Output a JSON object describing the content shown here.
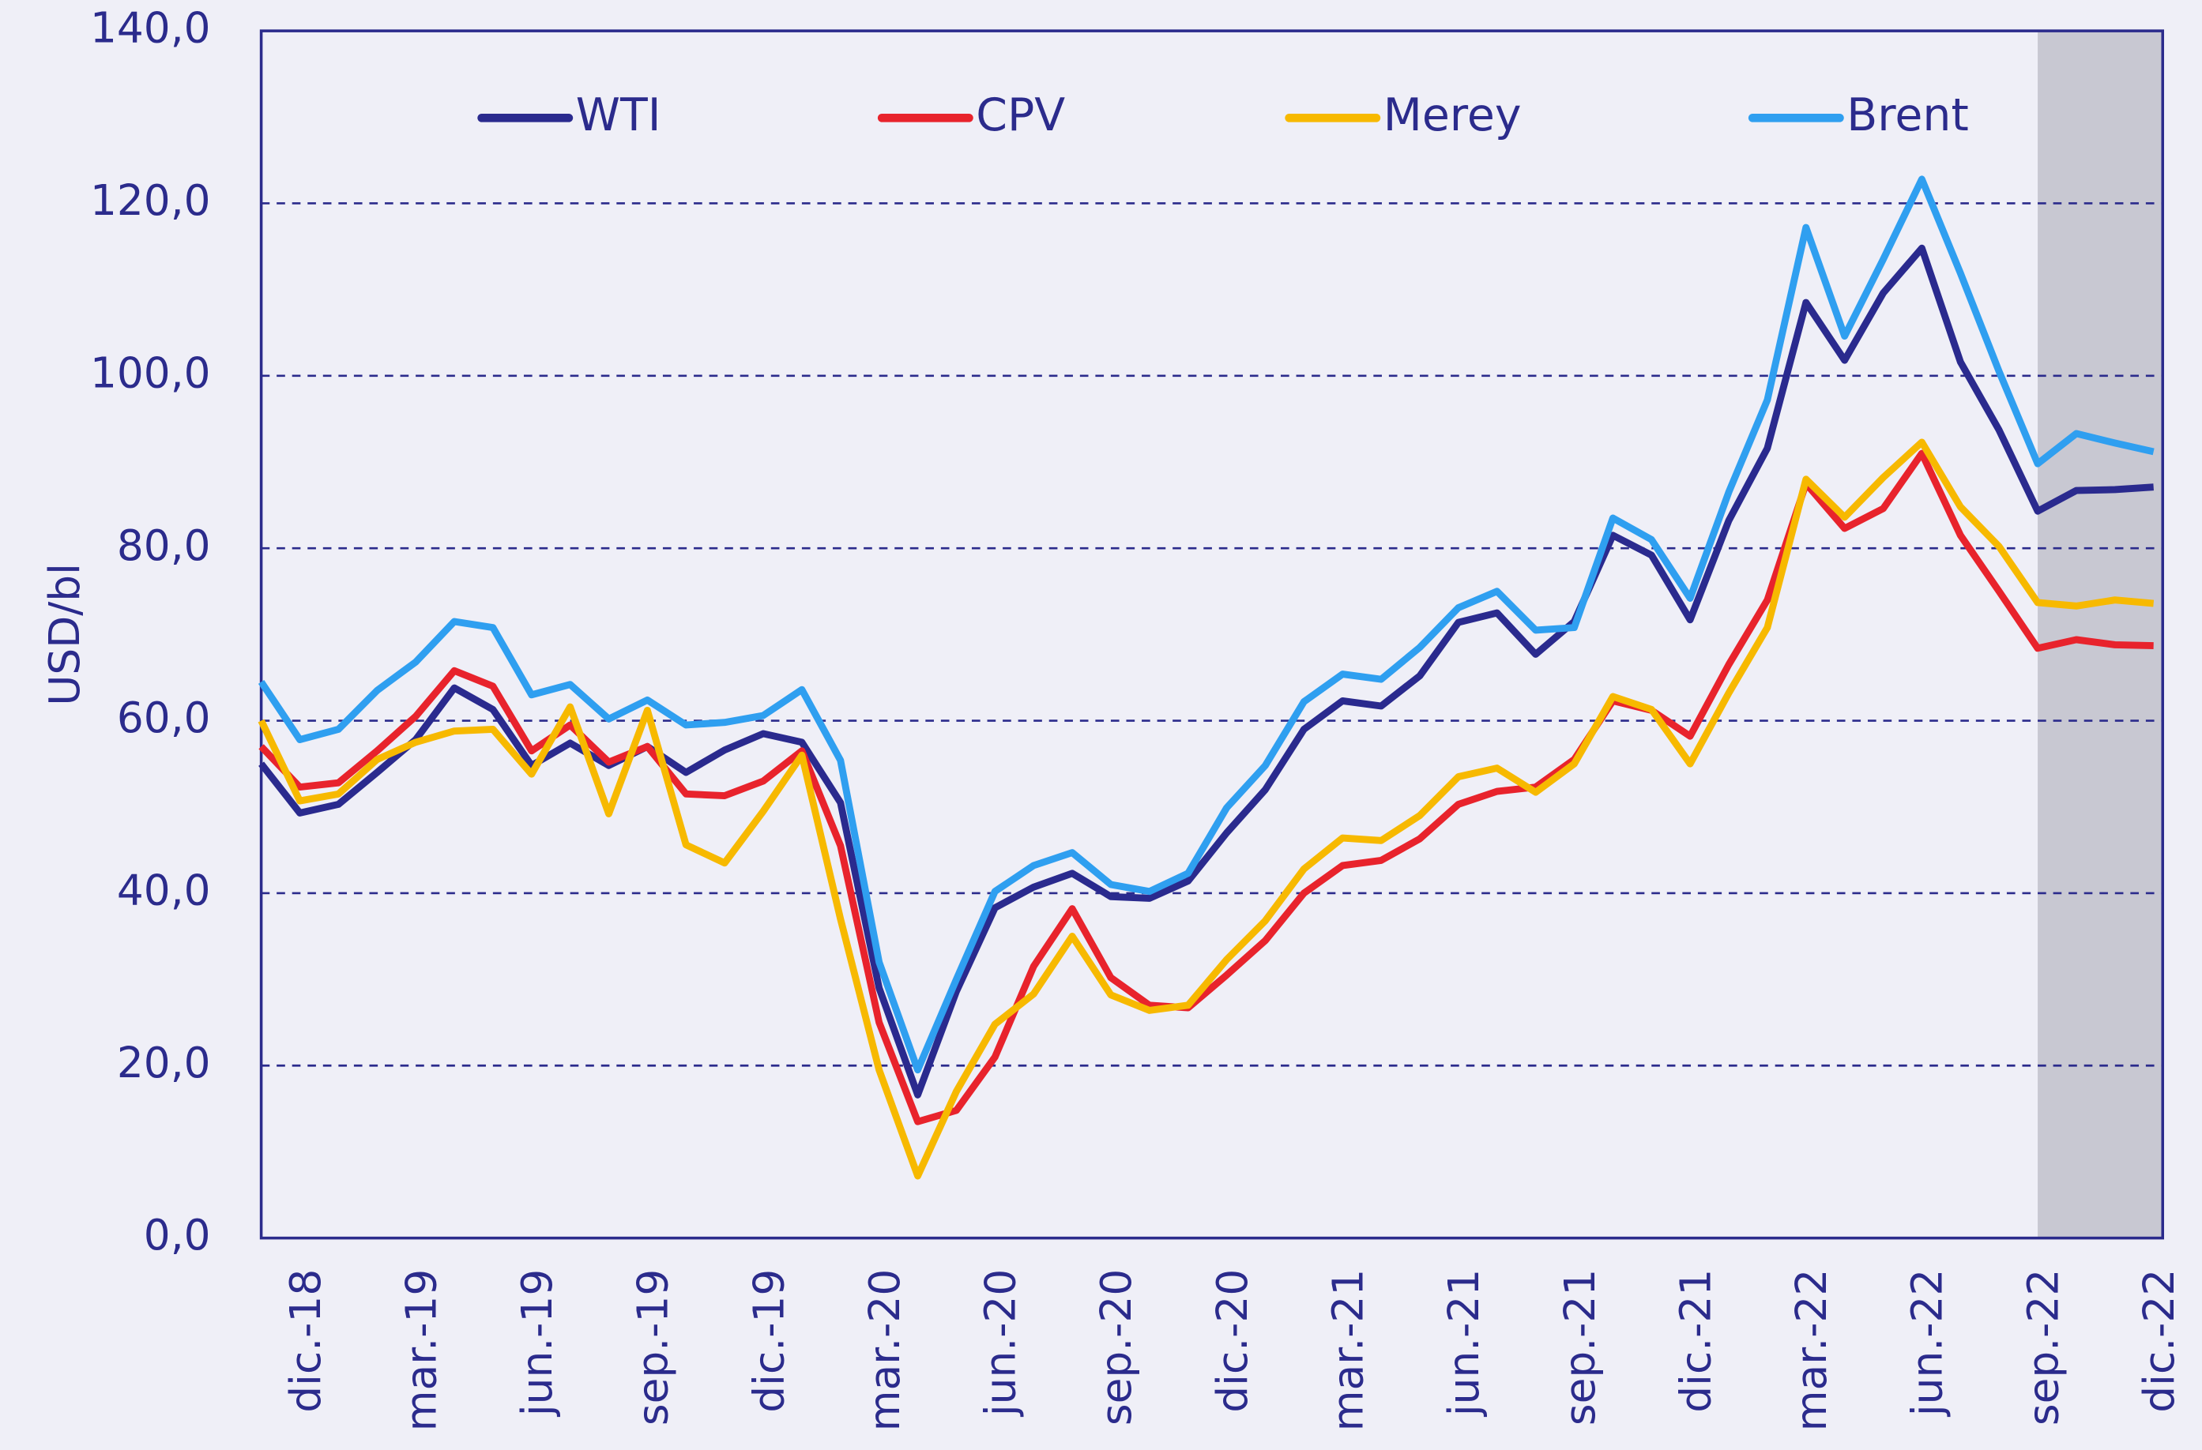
{
  "chart_data": {
    "type": "line",
    "y_label": "USD/bl",
    "categories": [
      null,
      "dic.-18",
      null,
      null,
      "mar.-19",
      null,
      null,
      "jun.-19",
      null,
      null,
      "sep.-19",
      null,
      null,
      "dic.-19",
      null,
      null,
      "mar.-20",
      null,
      null,
      "jun.-20",
      null,
      null,
      "sep.-20",
      null,
      null,
      "dic.-20",
      null,
      null,
      "mar.-21",
      null,
      null,
      "jun.-21",
      null,
      null,
      "sep.-21",
      null,
      null,
      "dic.-21",
      null,
      null,
      "mar.-22",
      null,
      null,
      "jun.-22",
      null,
      null,
      "sep.-22",
      null,
      null,
      "dic.-22"
    ],
    "series": [
      {
        "name": "WTI",
        "color": "#2a2a8e",
        "values": [
          55,
          49.3,
          50.3,
          54,
          57.8,
          63.8,
          61.3,
          54.8,
          57.4,
          54.8,
          57,
          54,
          56.6,
          58.5,
          57.5,
          50.5,
          29,
          16.6,
          28.6,
          38.3,
          40.7,
          42.3,
          39.6,
          39.4,
          41.4,
          47,
          52,
          59,
          62.3,
          61.7,
          65.2,
          71.4,
          72.5,
          67.7,
          71.5,
          81.5,
          79.2,
          71.7,
          83.2,
          91.6,
          108.5,
          101.8,
          109.6,
          114.8,
          101.6,
          93.7,
          84.3,
          86.7,
          86.8,
          87.1
        ]
      },
      {
        "name": "CPV",
        "color": "#e8232c",
        "values": [
          57,
          52.3,
          52.8,
          56.5,
          60.5,
          65.8,
          64,
          56.5,
          59.5,
          55.2,
          57,
          51.5,
          51.3,
          53,
          56.5,
          45.5,
          25,
          13.5,
          14.8,
          21,
          31.5,
          38.2,
          30.2,
          27,
          26.7,
          30.5,
          34.5,
          40,
          43.2,
          43.8,
          46.3,
          50.3,
          51.8,
          52.3,
          55.5,
          62.3,
          61.2,
          58.2,
          66.5,
          74,
          87.5,
          82.3,
          84.6,
          91,
          81.5,
          75,
          68.4,
          69.4,
          68.8,
          68.7
        ]
      },
      {
        "name": "Merey",
        "color": "#f7b900",
        "values": [
          60,
          50.7,
          51.5,
          55.5,
          57.5,
          58.8,
          59,
          53.8,
          61.6,
          49.2,
          61.2,
          45.6,
          43.5,
          49.5,
          56,
          37,
          19.5,
          7.2,
          17,
          24.8,
          28.3,
          35,
          28.2,
          26.4,
          27,
          32.3,
          36.8,
          42.8,
          46.4,
          46.1,
          49,
          53.5,
          54.5,
          51.7,
          55,
          62.8,
          61.3,
          55,
          63.2,
          70.8,
          88,
          83.6,
          88.2,
          92.3,
          84.8,
          80.2,
          73.7,
          73.3,
          74,
          73.6
        ]
      },
      {
        "name": "Brent",
        "color": "#2f9ff0",
        "values": [
          64.5,
          57.8,
          59,
          63.5,
          66.8,
          71.5,
          70.8,
          63,
          64.2,
          60.2,
          62.4,
          59.5,
          59.8,
          60.6,
          63.6,
          55.4,
          32,
          19.5,
          30,
          40.2,
          43.2,
          44.7,
          41,
          40.2,
          42.3,
          49.9,
          54.8,
          62.2,
          65.4,
          64.8,
          68.5,
          73.1,
          75,
          70.5,
          70.8,
          83.5,
          81,
          74.2,
          86.5,
          97.2,
          117.2,
          104.6,
          113.5,
          122.8,
          111.9,
          100.5,
          89.8,
          93.3,
          92.2,
          91.2
        ]
      }
    ],
    "ylim": [
      0,
      140
    ],
    "yticks": [
      {
        "value": 0,
        "label": "0,0"
      },
      {
        "value": 20,
        "label": "20,0"
      },
      {
        "value": 40,
        "label": "40,0"
      },
      {
        "value": 60,
        "label": "60,0"
      },
      {
        "value": 80,
        "label": "80,0"
      },
      {
        "value": 100,
        "label": "100,0"
      },
      {
        "value": 120,
        "label": "120,0"
      },
      {
        "value": 140,
        "label": "140,0"
      }
    ],
    "grid": true,
    "legend": "top",
    "shaded_from": "sep.-22"
  }
}
